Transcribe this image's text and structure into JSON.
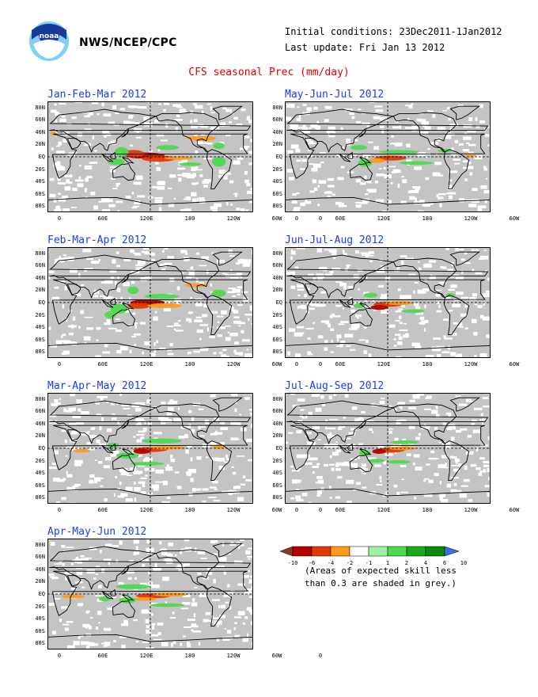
{
  "header": {
    "logo_text": "noaa",
    "agency": "NWS/NCEP/CPC",
    "initial_conditions": "Initial conditions: 23Dec2011-1Jan2012",
    "last_update": "Last update: Fri Jan 13 2012",
    "title": "CFS seasonal Prec (mm/day)"
  },
  "axes": {
    "lat_labels": [
      "80N",
      "60N",
      "40N",
      "20N",
      "EQ",
      "20S",
      "40S",
      "60S",
      "80S"
    ],
    "lon_labels": [
      "0",
      "60E",
      "120E",
      "180",
      "120W",
      "60W",
      "0"
    ]
  },
  "panels": [
    {
      "id": "jfm",
      "title": "Jan-Feb-Mar 2012"
    },
    {
      "id": "mjj",
      "title": "May-Jun-Jul 2012"
    },
    {
      "id": "fma",
      "title": "Feb-Mar-Apr 2012"
    },
    {
      "id": "jja",
      "title": "Jun-Jul-Aug 2012"
    },
    {
      "id": "mam",
      "title": "Mar-Apr-May 2012"
    },
    {
      "id": "jas",
      "title": "Jul-Aug-Sep 2012"
    },
    {
      "id": "amj",
      "title": "Apr-May-Jun 2012"
    }
  ],
  "legend": {
    "ticks": [
      "-10",
      "-6",
      "-4",
      "-2",
      "-1",
      "1",
      "2",
      "4",
      "6",
      "10"
    ],
    "colors": [
      "#8b3a1a",
      "#b40000",
      "#e03a00",
      "#ff9a1a",
      "#ffffff",
      "#9ef09e",
      "#4ed84e",
      "#1aaa1a",
      "#0b8a0b",
      "#3a6fe0"
    ],
    "note_line1": "(Areas of expected skill less",
    "note_line2": "than 0.3 are shaded in grey.)"
  }
}
